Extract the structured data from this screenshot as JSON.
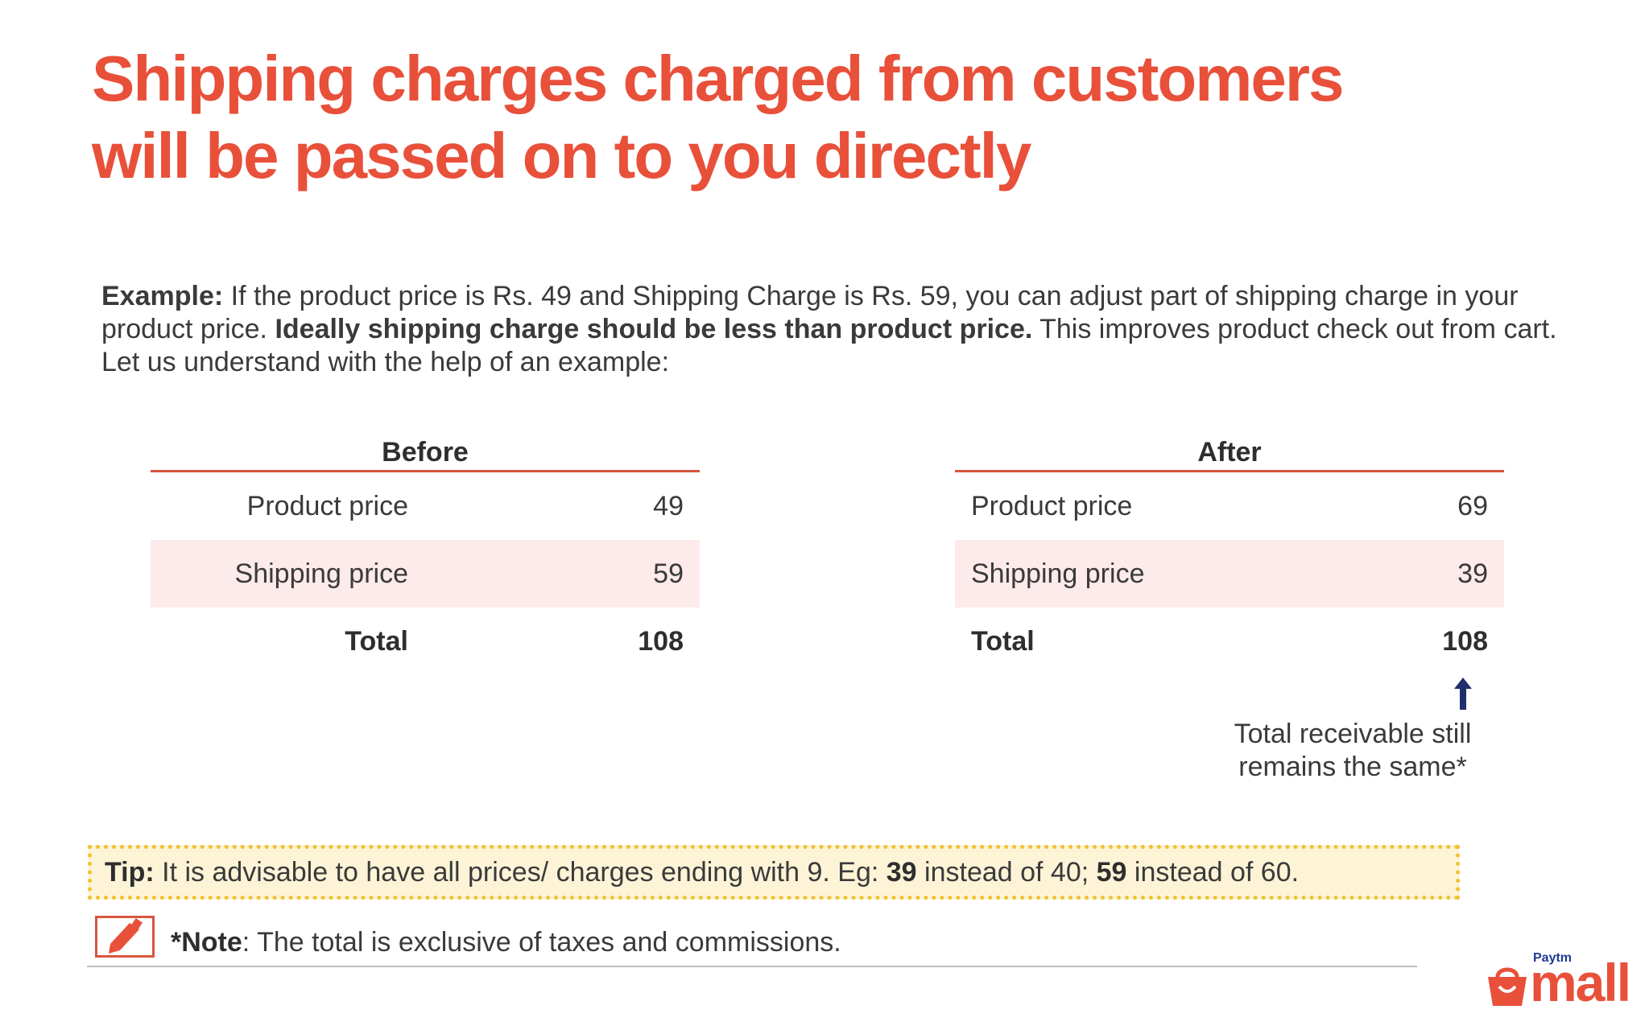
{
  "title": {
    "line1": "Shipping charges charged from customers",
    "line2": "will be passed on to you directly"
  },
  "example": {
    "lead": "Example:",
    "text1": " If the product price is Rs. 49 and Shipping Charge is Rs. 59, you can adjust part of shipping charge in your product price. ",
    "bold": "Ideally shipping charge should be less than product price.",
    "text2": " This improves product check out from cart. Let us understand with the help of an example:"
  },
  "before": {
    "heading": "Before",
    "rows": [
      {
        "label": "Product price",
        "value": "49"
      },
      {
        "label": "Shipping price",
        "value": "59"
      },
      {
        "label": "Total",
        "value": "108"
      }
    ]
  },
  "after": {
    "heading": "After",
    "rows": [
      {
        "label": "Product price",
        "value": "69"
      },
      {
        "label": "Shipping price",
        "value": "39"
      },
      {
        "label": "Total",
        "value": "108"
      }
    ]
  },
  "receivable": {
    "line1": "Total receivable still",
    "line2": "remains the same*"
  },
  "tip": {
    "lead": "Tip:",
    "text1": " It is advisable to have all prices/ charges ending with 9. Eg: ",
    "b1": "39",
    "text2": " instead of 40; ",
    "b2": "59",
    "text3": " instead of 60."
  },
  "note": {
    "lead": "*Note",
    "text": ": The total is exclusive of taxes and commissions."
  },
  "logo": {
    "top": "Paytm",
    "word": "mall"
  },
  "colors": {
    "accent": "#e8503a",
    "row_shade": "#fdeaea",
    "tip_bg": "#fdf4d7",
    "tip_border": "#f1c232",
    "arrow": "#1f2f6b"
  }
}
